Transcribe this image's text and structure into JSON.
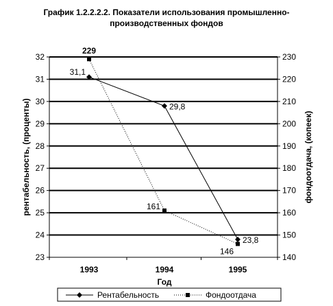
{
  "chart_data": {
    "type": "line",
    "title_line1": "График 1.2.2.2.2.  Показатели использования промышленно-",
    "title_line2": "производственных фондов",
    "xlabel": "Год",
    "ylabel_left": "рентабельность, (проценты)",
    "ylabel_right": "фондоотдача, (копеек)",
    "categories": [
      "1993",
      "1994",
      "1995"
    ],
    "y_left": {
      "min": 23,
      "max": 32,
      "step": 1
    },
    "y_right": {
      "min": 140,
      "max": 230,
      "step": 10
    },
    "grid": true,
    "legend_position": "bottom",
    "series": [
      {
        "name": "Рентабельность",
        "axis": "left",
        "values": [
          31.1,
          29.8,
          23.8
        ],
        "labels": [
          "31,1",
          "29,8",
          "23,8"
        ],
        "marker": "diamond",
        "line_style": "solid",
        "color": "#000000"
      },
      {
        "name": "Фондоотдача",
        "axis": "right",
        "values": [
          229,
          161,
          146
        ],
        "labels": [
          "229",
          "161",
          "146"
        ],
        "marker": "square",
        "line_style": "dotted",
        "color": "#000000"
      }
    ]
  }
}
